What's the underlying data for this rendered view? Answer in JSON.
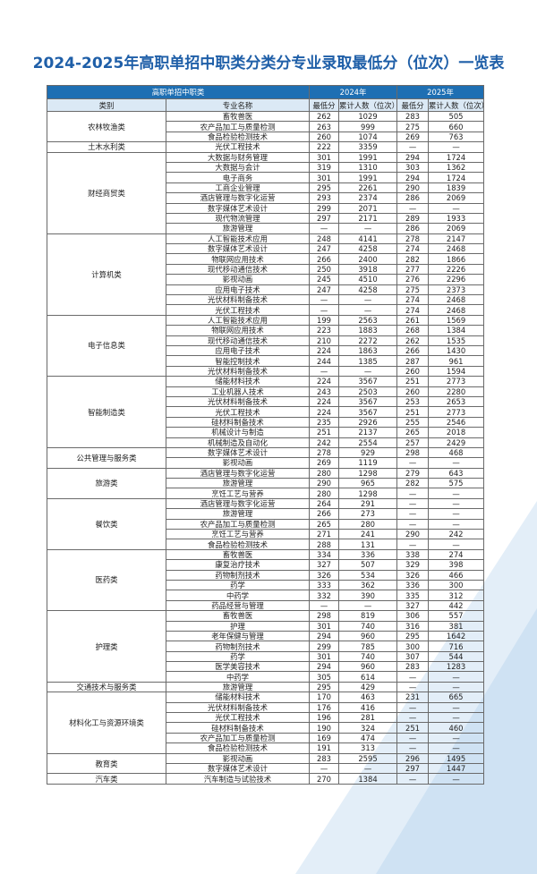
{
  "title": "2024-2025年高职单招中职类分类分专业录取最低分（位次）一览表",
  "table": {
    "group_header": "高职单招中职类",
    "year_headers": [
      "2024年",
      "2025年"
    ],
    "columns": [
      "类别",
      "专业名称",
      "最低分",
      "累计人数（位次）",
      "最低分",
      "累计人数（位次）"
    ],
    "groups": [
      {
        "category": "农林牧渔类",
        "rows": [
          [
            "畜牧兽医",
            262,
            1029,
            283,
            505
          ],
          [
            "农产品加工与质量检测",
            263,
            999,
            275,
            660
          ],
          [
            "食品检验检测技术",
            260,
            1074,
            269,
            763
          ]
        ]
      },
      {
        "category": "土木水利类",
        "rows": [
          [
            "光伏工程技术",
            222,
            3359,
            "—",
            "—"
          ]
        ]
      },
      {
        "category": "财经商贸类",
        "rows": [
          [
            "大数据与财务管理",
            301,
            1991,
            294,
            1724
          ],
          [
            "大数据与会计",
            319,
            1310,
            303,
            1362
          ],
          [
            "电子商务",
            301,
            1991,
            294,
            1724
          ],
          [
            "工商企业管理",
            295,
            2261,
            290,
            1839
          ],
          [
            "酒店管理与数字化运营",
            293,
            2374,
            286,
            2069
          ],
          [
            "数字媒体艺术设计",
            299,
            2071,
            "—",
            "—"
          ],
          [
            "现代物流管理",
            297,
            2171,
            289,
            1933
          ],
          [
            "旅游管理",
            "—",
            "—",
            286,
            2069
          ]
        ]
      },
      {
        "category": "计算机类",
        "rows": [
          [
            "人工智能技术应用",
            248,
            4141,
            278,
            2147
          ],
          [
            "数字媒体艺术设计",
            247,
            4258,
            274,
            2468
          ],
          [
            "物联网应用技术",
            266,
            2400,
            282,
            1866
          ],
          [
            "现代移动通信技术",
            250,
            3918,
            277,
            2226
          ],
          [
            "影视动画",
            245,
            4510,
            276,
            2296
          ],
          [
            "应用电子技术",
            247,
            4258,
            275,
            2373
          ],
          [
            "光伏材料制备技术",
            "—",
            "—",
            274,
            2468
          ],
          [
            "光伏工程技术",
            "—",
            "—",
            274,
            2468
          ]
        ]
      },
      {
        "category": "电子信息类",
        "rows": [
          [
            "人工智能技术应用",
            199,
            2563,
            261,
            1569
          ],
          [
            "物联网应用技术",
            223,
            1883,
            268,
            1384
          ],
          [
            "现代移动通信技术",
            210,
            2272,
            262,
            1535
          ],
          [
            "应用电子技术",
            224,
            1863,
            266,
            1430
          ],
          [
            "智能控制技术",
            244,
            1385,
            287,
            961
          ],
          [
            "光伏材料制备技术",
            "—",
            "—",
            260,
            1594
          ]
        ]
      },
      {
        "category": "智能制造类",
        "rows": [
          [
            "储能材料技术",
            224,
            3567,
            251,
            2773
          ],
          [
            "工业机器人技术",
            243,
            2503,
            260,
            2280
          ],
          [
            "光伏材料制备技术",
            224,
            3567,
            253,
            2653
          ],
          [
            "光伏工程技术",
            224,
            3567,
            251,
            2773
          ],
          [
            "硅材料制备技术",
            235,
            2926,
            255,
            2546
          ],
          [
            "机械设计与制造",
            251,
            2137,
            265,
            2018
          ],
          [
            "机械制造及自动化",
            242,
            2554,
            257,
            2429
          ]
        ]
      },
      {
        "category": "公共管理与服务类",
        "rows": [
          [
            "数字媒体艺术设计",
            278,
            929,
            298,
            468
          ],
          [
            "影视动画",
            269,
            1119,
            "—",
            "—"
          ]
        ]
      },
      {
        "category": "旅游类",
        "rows": [
          [
            "酒店管理与数字化运营",
            280,
            1298,
            279,
            643
          ],
          [
            "旅游管理",
            290,
            965,
            282,
            575
          ],
          [
            "烹饪工艺与营养",
            280,
            1298,
            "—",
            "—"
          ]
        ]
      },
      {
        "category": "餐饮类",
        "rows": [
          [
            "酒店管理与数字化运营",
            264,
            291,
            "—",
            "—"
          ],
          [
            "旅游管理",
            266,
            273,
            "—",
            "—"
          ],
          [
            "农产品加工与质量检测",
            265,
            280,
            "—",
            "—"
          ],
          [
            "烹饪工艺与营养",
            271,
            241,
            290,
            242
          ],
          [
            "食品检验检测技术",
            288,
            131,
            "—",
            "—"
          ]
        ]
      },
      {
        "category": "医药类",
        "rows": [
          [
            "畜牧兽医",
            334,
            336,
            338,
            274
          ],
          [
            "康复治疗技术",
            327,
            507,
            329,
            398
          ],
          [
            "药物制剂技术",
            326,
            534,
            326,
            466
          ],
          [
            "药学",
            333,
            362,
            336,
            300
          ],
          [
            "中药学",
            332,
            390,
            335,
            312
          ],
          [
            "药品经营与管理",
            "—",
            "—",
            327,
            442
          ]
        ]
      },
      {
        "category": "护理类",
        "rows": [
          [
            "畜牧兽医",
            298,
            819,
            306,
            557
          ],
          [
            "护理",
            301,
            740,
            316,
            381
          ],
          [
            "老年保健与管理",
            294,
            960,
            295,
            1642
          ],
          [
            "药物制剂技术",
            299,
            785,
            300,
            716
          ],
          [
            "药学",
            301,
            740,
            307,
            544
          ],
          [
            "医学美容技术",
            294,
            960,
            283,
            1283
          ],
          [
            "中药学",
            305,
            614,
            "—",
            "—"
          ]
        ]
      },
      {
        "category": "交通技术与服务类",
        "rows": [
          [
            "旅游管理",
            295,
            429,
            "—",
            "—"
          ]
        ]
      },
      {
        "category": "材料化工与资源环境类",
        "rows": [
          [
            "储能材料技术",
            170,
            463,
            231,
            665
          ],
          [
            "光伏材料制备技术",
            176,
            416,
            "—",
            "—"
          ],
          [
            "光伏工程技术",
            196,
            281,
            "—",
            "—"
          ],
          [
            "硅材料制备技术",
            190,
            324,
            251,
            460
          ],
          [
            "农产品加工与质量检测",
            169,
            474,
            "—",
            "—"
          ],
          [
            "食品检验检测技术",
            191,
            313,
            "—",
            "—"
          ]
        ]
      },
      {
        "category": "教育类",
        "rows": [
          [
            "影视动画",
            283,
            2595,
            296,
            1495
          ],
          [
            "数字媒体艺术设计",
            "—",
            "—",
            297,
            1447
          ]
        ]
      },
      {
        "category": "汽车类",
        "rows": [
          [
            "汽车制造与试验技术",
            270,
            1384,
            "—",
            "—"
          ]
        ]
      }
    ]
  }
}
